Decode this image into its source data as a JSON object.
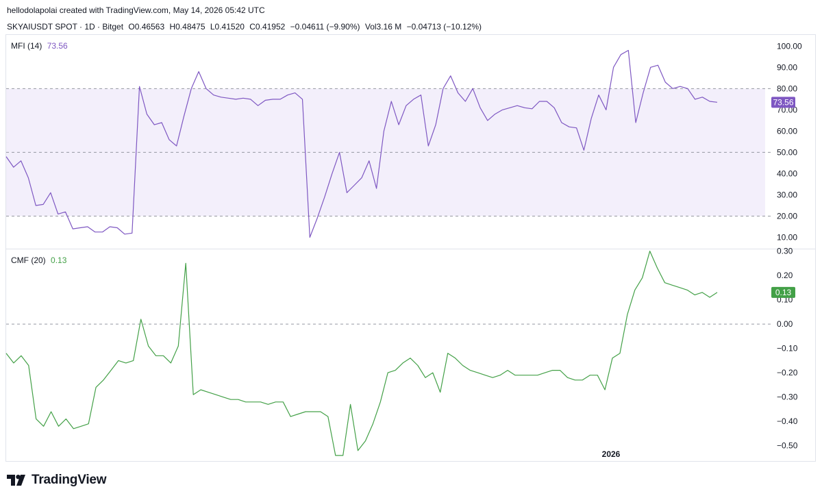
{
  "header": {
    "credit": "hellodolapolai created with TradingView.com, May 14, 2026 05:42 UTC",
    "symbol": "SKYAIUSDT SPOT · 1D · Bitget",
    "open": "O0.46563",
    "high": "H0.48475",
    "low": "L0.41520",
    "close": "C0.41952",
    "change": "−0.04611 (−9.90%)",
    "volume": "Vol3.16 M",
    "volume_change": "−0.04713 (−10.12%)"
  },
  "footer": {
    "logo_text": "TradingView"
  },
  "colors": {
    "mfi": "#7e57c2",
    "cmf": "#43a047",
    "band_fill": "#f3effb",
    "grid": "#9598a1"
  },
  "chart_data": [
    {
      "type": "line",
      "name": "MFI (14)",
      "label": "MFI (14)",
      "last_value": "73.56",
      "yticks": [
        "100.00",
        "90.00",
        "80.00",
        "70.00",
        "60.00",
        "50.00",
        "40.00",
        "30.00",
        "20.00",
        "10.00"
      ],
      "ylim": [
        5,
        103
      ],
      "reference_lines": [
        80,
        50,
        20
      ],
      "band": [
        20,
        80
      ],
      "values": [
        48,
        43,
        46,
        38,
        25,
        25.5,
        31,
        21,
        22,
        14,
        14.5,
        15,
        12.5,
        12.5,
        15,
        14.5,
        11.5,
        12,
        81,
        68,
        63,
        64,
        56,
        53,
        67,
        80,
        88,
        80,
        77,
        76,
        75.5,
        75,
        75.5,
        75,
        72,
        74.5,
        75,
        75,
        77,
        78,
        75,
        10,
        19,
        29,
        40,
        50,
        31,
        34.5,
        38,
        46,
        33,
        60,
        74,
        63,
        72,
        75,
        77,
        53,
        63,
        80,
        86,
        78,
        74,
        80,
        71,
        65,
        68,
        70,
        71,
        72,
        71,
        70.5,
        74,
        74,
        71,
        64,
        62,
        61.5,
        51,
        66,
        77,
        70,
        90,
        96,
        98,
        64,
        78,
        90,
        91,
        83,
        80,
        81,
        80,
        75,
        76,
        74,
        73.56
      ]
    },
    {
      "type": "line",
      "name": "CMF (20)",
      "label": "CMF (20)",
      "last_value": "0.13",
      "yticks": [
        "0.30",
        "0.20",
        "0.10",
        "0.00",
        "−0.10",
        "−0.20",
        "−0.30",
        "−0.40",
        "−0.50"
      ],
      "ylim": [
        -0.56,
        0.31
      ],
      "reference_lines": [
        0
      ],
      "values": [
        -0.12,
        -0.16,
        -0.13,
        -0.17,
        -0.39,
        -0.42,
        -0.36,
        -0.42,
        -0.39,
        -0.43,
        -0.42,
        -0.41,
        -0.26,
        -0.23,
        -0.19,
        -0.15,
        -0.16,
        -0.15,
        0.02,
        -0.09,
        -0.13,
        -0.13,
        -0.16,
        -0.09,
        0.25,
        -0.29,
        -0.27,
        -0.28,
        -0.29,
        -0.3,
        -0.31,
        -0.31,
        -0.32,
        -0.32,
        -0.32,
        -0.33,
        -0.32,
        -0.32,
        -0.38,
        -0.37,
        -0.36,
        -0.36,
        -0.36,
        -0.38,
        -0.54,
        -0.54,
        -0.33,
        -0.52,
        -0.48,
        -0.41,
        -0.32,
        -0.2,
        -0.19,
        -0.16,
        -0.14,
        -0.17,
        -0.22,
        -0.2,
        -0.28,
        -0.12,
        -0.14,
        -0.17,
        -0.19,
        -0.2,
        -0.21,
        -0.22,
        -0.21,
        -0.19,
        -0.21,
        -0.21,
        -0.21,
        -0.21,
        -0.2,
        -0.19,
        -0.19,
        -0.22,
        -0.23,
        -0.23,
        -0.21,
        -0.21,
        -0.27,
        -0.14,
        -0.12,
        0.04,
        0.14,
        0.19,
        0.3,
        0.23,
        0.17,
        0.16,
        0.15,
        0.14,
        0.12,
        0.13,
        0.11,
        0.13
      ]
    }
  ],
  "x_axis": {
    "label": "2026"
  }
}
